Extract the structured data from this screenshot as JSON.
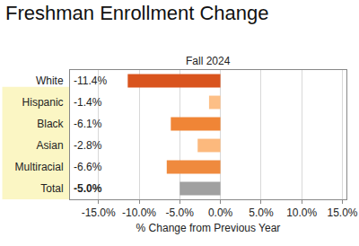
{
  "chart_data": {
    "type": "bar",
    "title": "Freshman Enrollment Change",
    "subtitle": "Fall 2024",
    "x_label": "% Change from Previous Year",
    "orientation": "horizontal",
    "categories": [
      "White",
      "Hispanic",
      "Black",
      "Asian",
      "Multiracial",
      "Total"
    ],
    "values": [
      -11.4,
      -1.4,
      -6.1,
      -2.8,
      -6.6,
      -5.0
    ],
    "value_labels": [
      "-11.4%",
      "-1.4%",
      "-6.1%",
      "-2.8%",
      "-6.6%",
      "-5.0%"
    ],
    "colors": [
      "#d9541e",
      "#fdbf86",
      "#f08536",
      "#fcb97d",
      "#ef8a3e",
      "#a0a0a0"
    ],
    "data_labels": true,
    "grid": true,
    "xlim": [
      -18.5,
      15.5
    ],
    "xticks": [
      {
        "value": -15,
        "label": "-15.0%"
      },
      {
        "value": -10,
        "label": "-10.0%"
      },
      {
        "value": -5,
        "label": "-5.0%"
      },
      {
        "value": 0,
        "label": "0.0%"
      },
      {
        "value": 5,
        "label": "5.0%"
      },
      {
        "value": 10,
        "label": "10.0%"
      },
      {
        "value": 15,
        "label": "15.0%"
      }
    ]
  }
}
